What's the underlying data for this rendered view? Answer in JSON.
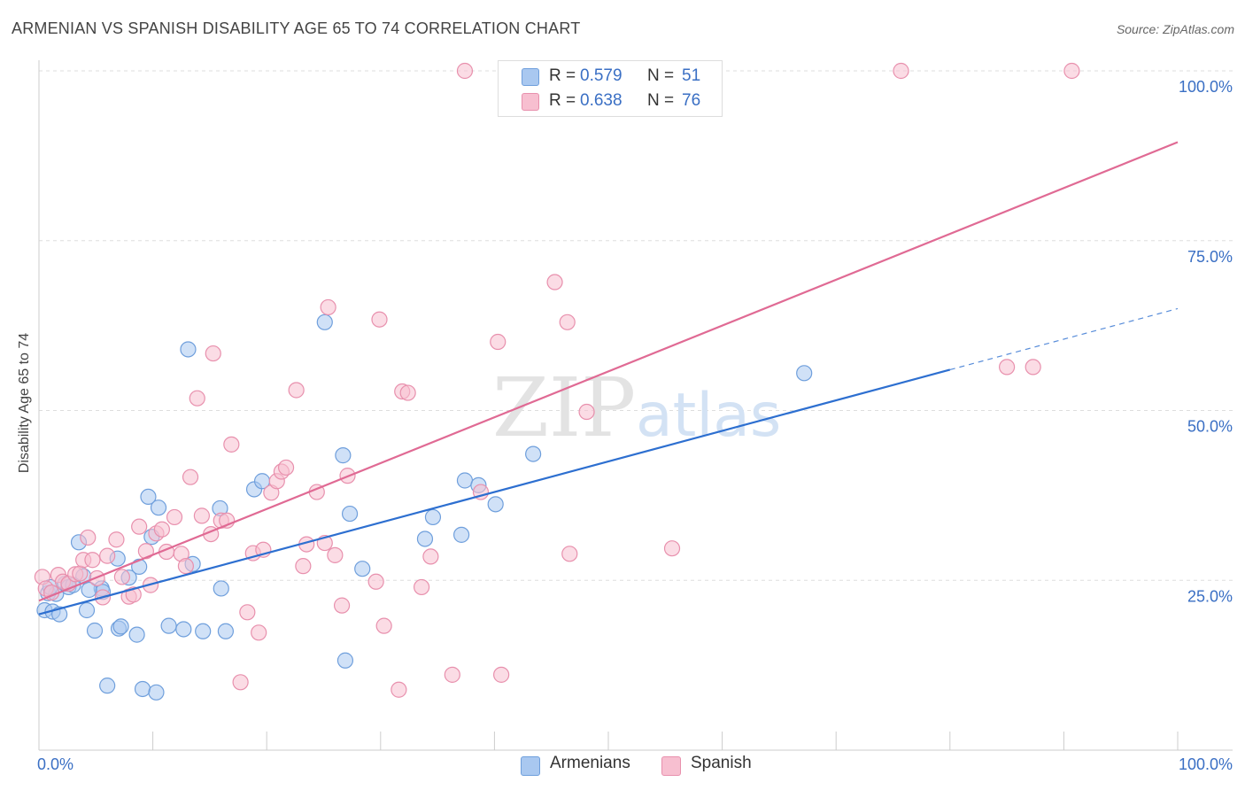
{
  "title": "ARMENIAN VS SPANISH DISABILITY AGE 65 TO 74 CORRELATION CHART",
  "source": "Source: ZipAtlas.com",
  "watermark": {
    "zip": "ZIP",
    "atlas": "atlas"
  },
  "legend": {
    "armenians": {
      "r_label": "R =",
      "r_value": "0.579",
      "n_label": "N =",
      "n_value": "51"
    },
    "spanish": {
      "r_label": "R =",
      "r_value": "0.638",
      "n_label": "N =",
      "n_value": "76"
    }
  },
  "bottom_legend": {
    "armenians": "Armenians",
    "spanish": "Spanish"
  },
  "colors": {
    "armenians_fill": "#a9c8f0",
    "armenians_stroke": "#6f9fdc",
    "armenians_line": "#2d6fd0",
    "spanish_fill": "#f7bfd0",
    "spanish_stroke": "#e890ad",
    "spanish_line": "#e06a94",
    "axis_label": "#3a6fc4",
    "grid": "#dddddd"
  },
  "chart_data": {
    "type": "scatter",
    "title": "ARMENIAN VS SPANISH DISABILITY AGE 65 TO 74 CORRELATION CHART",
    "xlabel": "",
    "ylabel": "Disability Age 65 to 74",
    "xlim": [
      0,
      100
    ],
    "ylim": [
      0,
      100
    ],
    "x_tick_labels": [
      "0.0%",
      "100.0%"
    ],
    "y_ticks": [
      25,
      50,
      75,
      100
    ],
    "y_tick_labels": [
      "25.0%",
      "50.0%",
      "75.0%",
      "100.0%"
    ],
    "grid": true,
    "series": [
      {
        "name": "Armenians",
        "r": 0.579,
        "n": 51,
        "trend": {
          "x0": 0,
          "y0": 20.0,
          "x1": 80,
          "y1": 56.0,
          "dash_x1": 100,
          "dash_y1": 65.0
        },
        "points": [
          [
            0.5,
            20.6
          ],
          [
            0.8,
            23.1
          ],
          [
            1.2,
            20.4
          ],
          [
            1.5,
            23.0
          ],
          [
            1.8,
            20.0
          ],
          [
            2.3,
            24.5
          ],
          [
            2.6,
            24.0
          ],
          [
            3.5,
            30.6
          ],
          [
            3.9,
            25.6
          ],
          [
            4.2,
            20.6
          ],
          [
            4.9,
            17.6
          ],
          [
            5.5,
            23.8
          ],
          [
            5.6,
            23.3
          ],
          [
            6.0,
            9.5
          ],
          [
            6.9,
            28.2
          ],
          [
            7.0,
            17.9
          ],
          [
            7.2,
            18.2
          ],
          [
            7.9,
            25.4
          ],
          [
            8.6,
            17.0
          ],
          [
            8.8,
            27.0
          ],
          [
            9.1,
            9.0
          ],
          [
            9.6,
            37.3
          ],
          [
            9.9,
            31.4
          ],
          [
            10.3,
            8.5
          ],
          [
            10.5,
            35.7
          ],
          [
            11.4,
            18.3
          ],
          [
            12.7,
            17.8
          ],
          [
            13.1,
            59.0
          ],
          [
            13.5,
            27.4
          ],
          [
            14.4,
            17.5
          ],
          [
            16.4,
            17.5
          ],
          [
            16.0,
            23.8
          ],
          [
            15.9,
            35.6
          ],
          [
            18.9,
            38.4
          ],
          [
            19.6,
            39.6
          ],
          [
            25.1,
            63.0
          ],
          [
            26.7,
            43.4
          ],
          [
            26.9,
            13.2
          ],
          [
            27.3,
            34.8
          ],
          [
            28.4,
            26.7
          ],
          [
            33.9,
            31.1
          ],
          [
            34.6,
            34.3
          ],
          [
            37.1,
            31.7
          ],
          [
            37.4,
            39.7
          ],
          [
            38.6,
            39.0
          ],
          [
            40.1,
            36.2
          ],
          [
            43.4,
            43.6
          ],
          [
            67.2,
            55.5
          ],
          [
            1.0,
            24.0
          ],
          [
            3.0,
            24.3
          ],
          [
            4.4,
            23.6
          ]
        ]
      },
      {
        "name": "Spanish",
        "r": 0.638,
        "n": 76,
        "trend": {
          "x0": 0,
          "y0": 22.0,
          "x1": 100,
          "y1": 89.5
        },
        "points": [
          [
            0.3,
            25.5
          ],
          [
            0.6,
            23.8
          ],
          [
            1.1,
            23.2
          ],
          [
            1.7,
            25.8
          ],
          [
            2.1,
            24.8
          ],
          [
            2.6,
            24.5
          ],
          [
            3.2,
            25.9
          ],
          [
            3.6,
            26.0
          ],
          [
            3.9,
            28.0
          ],
          [
            4.3,
            31.3
          ],
          [
            4.7,
            28.0
          ],
          [
            5.1,
            25.3
          ],
          [
            5.6,
            22.5
          ],
          [
            6.0,
            28.6
          ],
          [
            6.8,
            31.0
          ],
          [
            7.3,
            25.5
          ],
          [
            7.9,
            22.6
          ],
          [
            8.3,
            22.9
          ],
          [
            8.8,
            32.9
          ],
          [
            9.4,
            29.3
          ],
          [
            9.8,
            24.3
          ],
          [
            10.3,
            31.9
          ],
          [
            10.8,
            32.5
          ],
          [
            11.2,
            29.2
          ],
          [
            11.9,
            34.3
          ],
          [
            12.5,
            28.9
          ],
          [
            12.9,
            27.1
          ],
          [
            13.3,
            40.2
          ],
          [
            13.9,
            51.8
          ],
          [
            14.3,
            34.5
          ],
          [
            15.1,
            31.8
          ],
          [
            15.3,
            58.4
          ],
          [
            16.0,
            33.8
          ],
          [
            16.5,
            33.8
          ],
          [
            16.9,
            45.0
          ],
          [
            17.7,
            10.0
          ],
          [
            18.3,
            20.3
          ],
          [
            18.8,
            29.0
          ],
          [
            19.3,
            17.3
          ],
          [
            19.7,
            29.5
          ],
          [
            20.4,
            37.9
          ],
          [
            20.9,
            39.6
          ],
          [
            21.3,
            41.0
          ],
          [
            21.7,
            41.6
          ],
          [
            22.6,
            53.0
          ],
          [
            23.2,
            27.1
          ],
          [
            23.5,
            30.3
          ],
          [
            24.4,
            38.0
          ],
          [
            25.1,
            30.5
          ],
          [
            25.4,
            65.2
          ],
          [
            26.0,
            28.7
          ],
          [
            26.6,
            21.3
          ],
          [
            27.1,
            40.4
          ],
          [
            29.6,
            24.8
          ],
          [
            29.9,
            63.4
          ],
          [
            30.3,
            18.3
          ],
          [
            31.6,
            8.9
          ],
          [
            31.9,
            52.8
          ],
          [
            32.4,
            52.6
          ],
          [
            33.6,
            24.0
          ],
          [
            34.4,
            28.5
          ],
          [
            36.3,
            11.1
          ],
          [
            37.4,
            100.0
          ],
          [
            38.8,
            38.0
          ],
          [
            40.3,
            60.1
          ],
          [
            40.6,
            11.1
          ],
          [
            43.1,
            100.0
          ],
          [
            45.3,
            68.9
          ],
          [
            46.4,
            63.0
          ],
          [
            46.6,
            28.9
          ],
          [
            48.1,
            49.8
          ],
          [
            55.6,
            29.7
          ],
          [
            75.7,
            100.0
          ],
          [
            85.0,
            56.4
          ],
          [
            87.3,
            56.4
          ],
          [
            90.7,
            100.0
          ]
        ]
      }
    ]
  }
}
